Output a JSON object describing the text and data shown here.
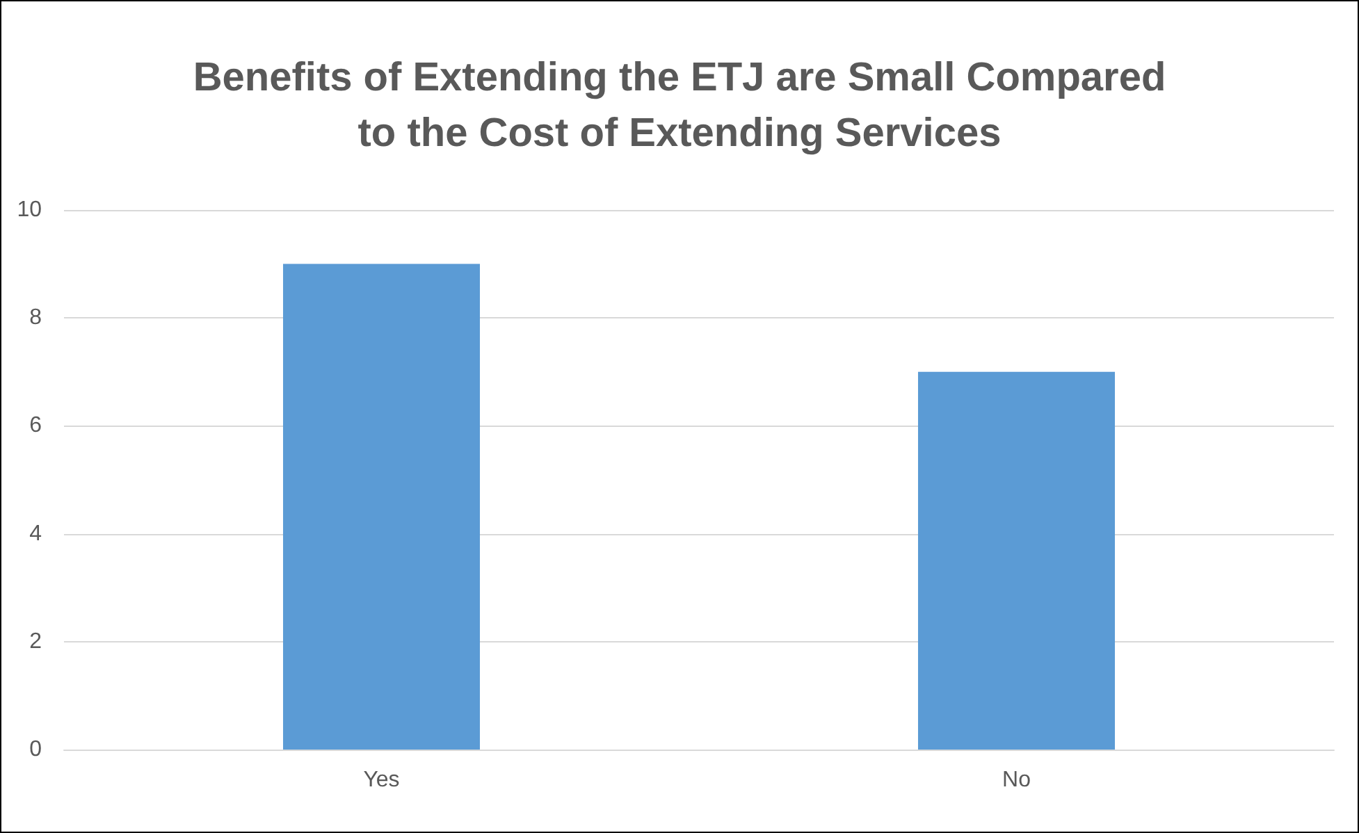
{
  "chart_data": {
    "type": "bar",
    "title": "Benefits of Extending the ETJ are Small Compared\nto the Cost of Extending Services",
    "categories": [
      "Yes",
      "No"
    ],
    "values": [
      9,
      7
    ],
    "color": "#5b9bd5",
    "ylim": [
      0,
      10
    ],
    "yticks": [
      0,
      2,
      4,
      6,
      8,
      10
    ],
    "grid": "y"
  }
}
